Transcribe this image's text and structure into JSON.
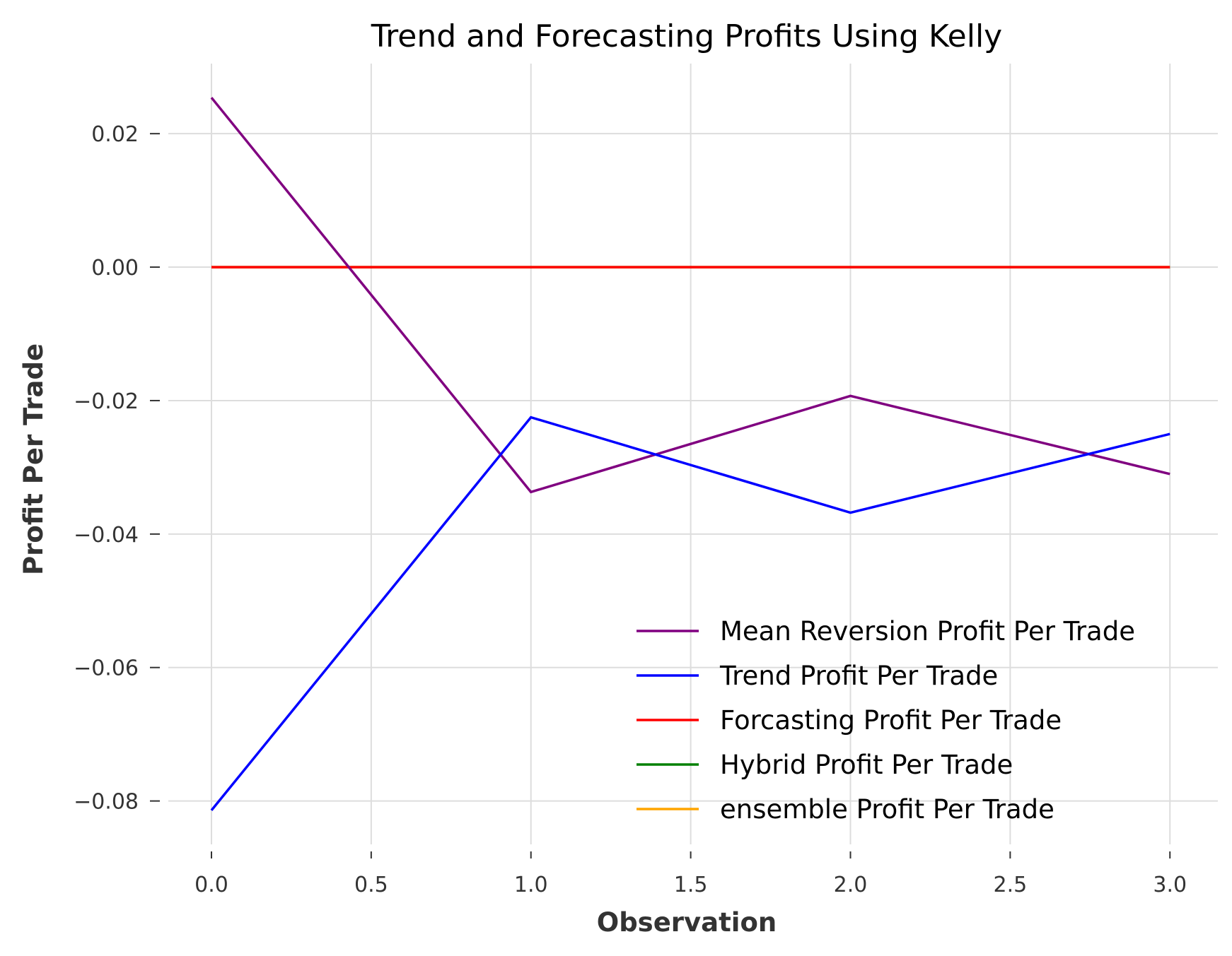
{
  "chart_data": {
    "type": "line",
    "title": "Trend and Forecasting Profits Using Kelly",
    "xlabel": "Observation",
    "ylabel": "Profit Per Trade",
    "x": [
      0,
      1,
      2,
      3
    ],
    "xlim": [
      -0.135,
      3.15
    ],
    "ylim": [
      -0.0865,
      0.0305
    ],
    "xticks": [
      0.0,
      0.5,
      1.0,
      1.5,
      2.0,
      2.5,
      3.0
    ],
    "xtick_labels": [
      "0.0",
      "0.5",
      "1.0",
      "1.5",
      "2.0",
      "2.5",
      "3.0"
    ],
    "yticks": [
      0.02,
      0.0,
      -0.02,
      -0.04,
      -0.06,
      -0.08
    ],
    "ytick_labels": [
      "0.02",
      "0.00",
      "−0.02",
      "−0.04",
      "−0.06",
      "−0.08"
    ],
    "grid": true,
    "legend_position": "bottom-right",
    "series": [
      {
        "name": "Mean Reversion Profit Per Trade",
        "color": "#800080",
        "values": [
          0.0254,
          -0.0337,
          -0.0193,
          -0.031
        ]
      },
      {
        "name": "Trend Profit Per Trade",
        "color": "#0000ff",
        "values": [
          -0.0814,
          -0.0225,
          -0.0368,
          -0.025
        ]
      },
      {
        "name": "Forcasting Profit Per Trade",
        "color": "#ff0000",
        "values": [
          0.0,
          0.0,
          0.0,
          0.0
        ]
      },
      {
        "name": "Hybrid Profit Per Trade",
        "color": "#008000",
        "values": [
          0.0,
          0.0,
          0.0,
          0.0
        ]
      },
      {
        "name": "ensemble Profit Per Trade",
        "color": "#ffa500",
        "values": [
          0.0,
          0.0,
          0.0,
          0.0
        ]
      }
    ]
  }
}
